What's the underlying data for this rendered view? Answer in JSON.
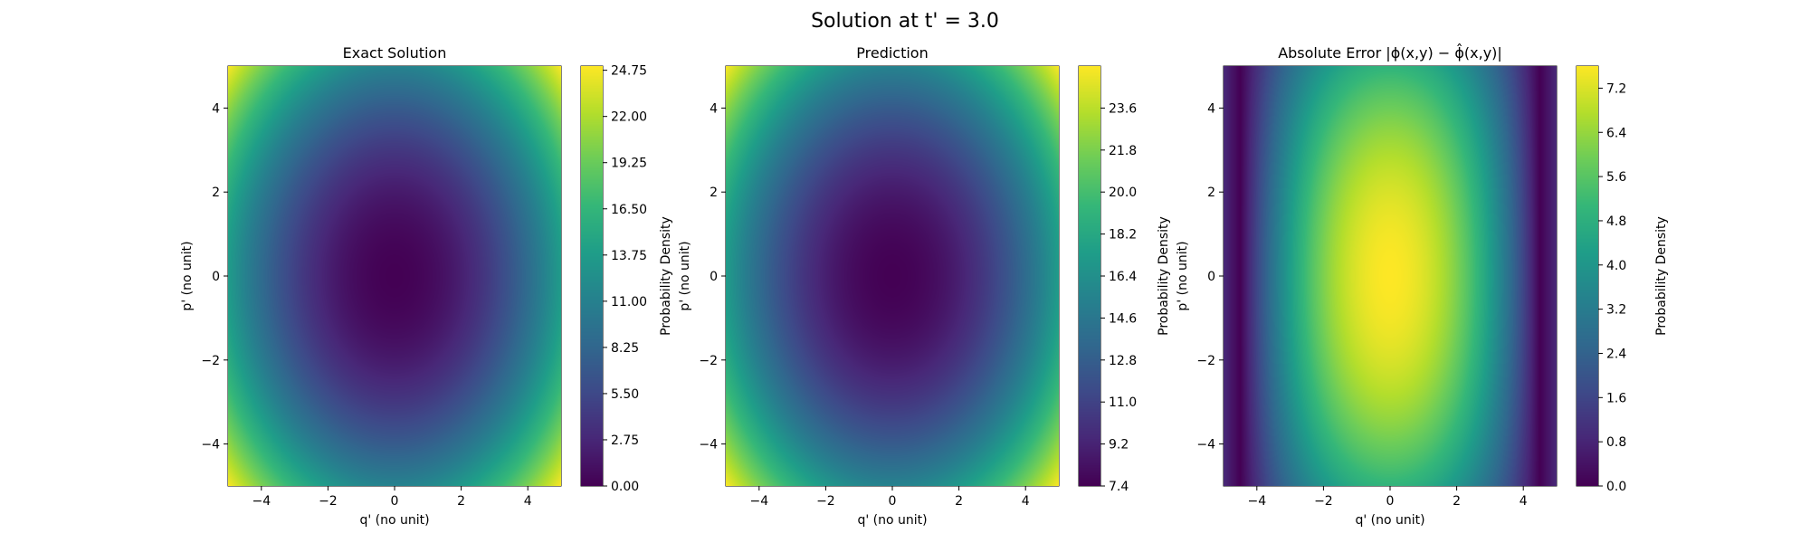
{
  "figure_title": "Solution at t' = 3.0",
  "chart_data": [
    {
      "type": "heatmap",
      "title": "Exact Solution",
      "xlabel": "q' (no unit)",
      "ylabel": "p' (no unit)",
      "xlim": [
        -5,
        5
      ],
      "ylim": [
        -5,
        5
      ],
      "xticks": [
        "−4",
        "−2",
        "0",
        "2",
        "4"
      ],
      "yticks": [
        "−4",
        "−2",
        "0",
        "2",
        "4"
      ],
      "colormap": "viridis",
      "colorbar_label": "Probability Density",
      "colorbar_range": [
        0.0,
        25.0
      ],
      "colorbar_ticks": [
        "0.00",
        "2.75",
        "5.50",
        "8.25",
        "11.00",
        "13.75",
        "16.50",
        "19.25",
        "22.00",
        "24.75"
      ],
      "corner_value": 25.0,
      "center_value": 0.0,
      "pattern": "quadratic bowl: value ≈ q'^2 + 0.4·p'^2, minimum at (0,0)"
    },
    {
      "type": "heatmap",
      "title": "Prediction",
      "xlabel": "q' (no unit)",
      "ylabel": "p' (no unit)",
      "xlim": [
        -5,
        5
      ],
      "ylim": [
        -5,
        5
      ],
      "xticks": [
        "−4",
        "−2",
        "0",
        "2",
        "4"
      ],
      "yticks": [
        "−4",
        "−2",
        "0",
        "2",
        "4"
      ],
      "colormap": "viridis",
      "colorbar_label": "Probability Density",
      "colorbar_range": [
        7.4,
        25.4
      ],
      "colorbar_ticks": [
        "7.4",
        "9.2",
        "11.0",
        "12.8",
        "14.6",
        "16.4",
        "18.2",
        "20.0",
        "21.8",
        "23.6"
      ],
      "corner_value": 25.4,
      "center_value": 7.4,
      "pattern": "shallower bowl with minimum ≈7.4 at (0,0)"
    },
    {
      "type": "heatmap",
      "title": "Absolute Error |ϕ(x,y) − ϕ̂(x,y)|",
      "xlabel": "q' (no unit)",
      "ylabel": "p' (no unit)",
      "xlim": [
        -5,
        5
      ],
      "ylim": [
        -5,
        5
      ],
      "xticks": [
        "−4",
        "−2",
        "0",
        "2",
        "4"
      ],
      "yticks": [
        "−4",
        "−2",
        "0",
        "2",
        "4"
      ],
      "colormap": "viridis",
      "colorbar_label": "Probability Density",
      "colorbar_range": [
        0.0,
        7.6
      ],
      "colorbar_ticks": [
        "0.0",
        "0.8",
        "1.6",
        "2.4",
        "3.2",
        "4.0",
        "4.8",
        "5.6",
        "6.4",
        "7.2"
      ],
      "corner_value": 0.4,
      "center_value": 7.6,
      "pattern": "peak ≈7.6 at center, near 0 along |q'| ≈ 4.5"
    }
  ]
}
